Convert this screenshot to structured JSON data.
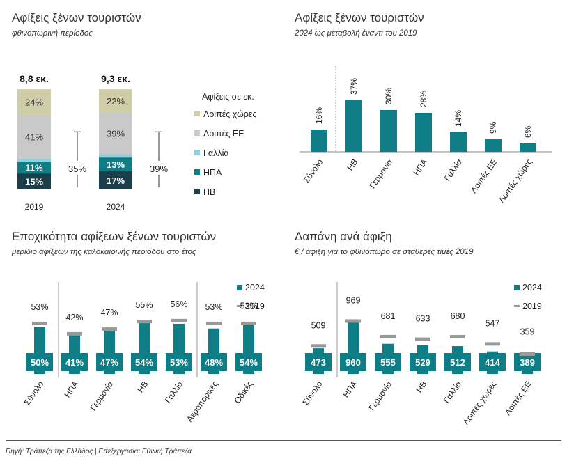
{
  "colors": {
    "teal": "#0F7D85",
    "dark_teal": "#1C5F6E",
    "navy": "#1B3E4A",
    "light_blue": "#8ECFE0",
    "light_gray": "#C9C9C9",
    "khaki": "#CFCCA8",
    "gray_marker": "#999999"
  },
  "source": "Πηγή: Τράπεζα της Ελλάδος | Επεξεργασία: Εθνική Τράπεζα",
  "chart_data": [
    {
      "type": "bar",
      "stacked": true,
      "title": "Αφίξεις ξένων τουριστών",
      "subtitle": "φθινοπωρινή περίοδος",
      "legend_title": "Αφίξεις σε εκ.",
      "legend_position": "right",
      "categories": [
        "2019",
        "2024"
      ],
      "totals": [
        "8,8 εκ.",
        "9,3 εκ."
      ],
      "series": [
        {
          "name": "ΗΒ",
          "values": [
            15,
            17
          ],
          "labels": [
            "15%",
            "17%"
          ],
          "color": "#1B3E4A"
        },
        {
          "name": "ΗΠΑ",
          "values": [
            11,
            13
          ],
          "labels": [
            "11%",
            "13%"
          ],
          "color": "#0F7D85"
        },
        {
          "name": "Γαλλία",
          "values": [
            3,
            3
          ],
          "labels": [
            "",
            ""
          ],
          "color": "#8ECFE0"
        },
        {
          "name": "Λοιπές ΕΕ",
          "values": [
            41,
            39
          ],
          "labels": [
            "41%",
            "39%"
          ],
          "color": "#C9C9C9"
        },
        {
          "name": "Λοιπές χώρες",
          "values": [
            24,
            22
          ],
          "labels": [
            "24%",
            "22%"
          ],
          "color": "#CFCCA8"
        }
      ],
      "brackets": [
        "35%",
        "39%"
      ],
      "legend_order": [
        "Λοιπές χώρες",
        "Λοιπές ΕΕ",
        "Γαλλία",
        "ΗΠΑ",
        "ΗΒ"
      ]
    },
    {
      "type": "bar",
      "title": "Αφίξεις ξένων τουριστών",
      "subtitle": "2024 ως μεταβολή έναντι του 2019",
      "categories": [
        "Σύνολο",
        "ΗΒ",
        "Γερμανία",
        "ΗΠΑ",
        "Γαλλία",
        "Λοιπές ΕΕ",
        "Λοιπές χώρες"
      ],
      "values": [
        16,
        37,
        30,
        28,
        14,
        9,
        6
      ],
      "labels": [
        "16%",
        "37%",
        "30%",
        "28%",
        "14%",
        "9%",
        "6%"
      ],
      "ylim": [
        0,
        40
      ]
    },
    {
      "type": "bar",
      "title": "Εποχικότητα αφίξεων ξένων τουριστών",
      "subtitle": "μερίδιο αφίξεων της καλοκαιρινής περιόδου στο έτος",
      "legend_position": "top-right",
      "categories": [
        "Σύνολο",
        "ΗΠΑ",
        "Γερμανία",
        "ΗΒ",
        "Γαλλία",
        "Αεροπορικές",
        "Οδικές"
      ],
      "series": [
        {
          "name": "2024",
          "values": [
            50,
            41,
            47,
            54,
            53,
            48,
            54
          ],
          "labels": [
            "50%",
            "41%",
            "47%",
            "54%",
            "53%",
            "48%",
            "54%"
          ],
          "color": "#0F7D85"
        },
        {
          "name": "2019",
          "values": [
            53,
            42,
            47,
            55,
            56,
            53,
            53
          ],
          "labels": [
            "53%",
            "42%",
            "47%",
            "55%",
            "56%",
            "53%",
            "53%"
          ],
          "color": "#999999",
          "marker": "line"
        }
      ],
      "ylim": [
        0,
        60
      ]
    },
    {
      "type": "bar",
      "title": "Δαπάνη ανά άφιξη",
      "subtitle": "€ / άφιξη για το φθινόπωρο σε σταθερές τιμές 2019",
      "legend_position": "top-right",
      "categories": [
        "Σύνολο",
        "ΗΠΑ",
        "Γερμανία",
        "ΗΒ",
        "Γαλλία",
        "Λοιπές χώρες",
        "Λοιπές ΕΕ"
      ],
      "series": [
        {
          "name": "2024",
          "values": [
            473,
            960,
            555,
            529,
            512,
            414,
            389
          ],
          "labels": [
            "473",
            "960",
            "555",
            "529",
            "512",
            "414",
            "389"
          ],
          "color": "#0F7D85"
        },
        {
          "name": "2019",
          "values": [
            509,
            969,
            681,
            633,
            680,
            547,
            359
          ],
          "labels": [
            "509",
            "969",
            "681",
            "633",
            "680",
            "547",
            "359"
          ],
          "color": "#999999",
          "marker": "line"
        }
      ],
      "ylim": [
        0,
        1000
      ]
    }
  ]
}
